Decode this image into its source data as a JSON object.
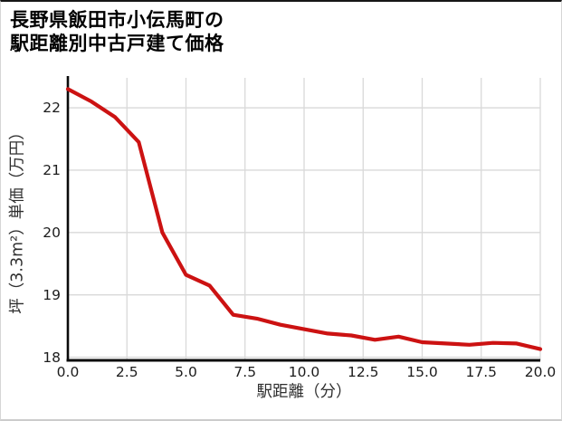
{
  "header": {
    "title_line1": "長野県飯田市小伝馬町の",
    "title_line2": "駅距離別中古戸建て価格"
  },
  "chart_data": {
    "type": "line",
    "title": "長野県飯田市小伝馬町の駅距離別中古戸建て価格",
    "xlabel": "駅距離（分）",
    "ylabel": "坪（3.3m²）単価（万円）",
    "x": [
      0,
      1,
      2,
      3,
      4,
      5,
      6,
      7,
      8,
      9,
      10,
      11,
      12,
      13,
      14,
      15,
      16,
      17,
      18,
      19,
      20
    ],
    "values": [
      22.3,
      22.1,
      21.85,
      21.45,
      20.0,
      19.32,
      19.15,
      18.68,
      18.62,
      18.52,
      18.45,
      18.38,
      18.35,
      18.28,
      18.33,
      18.24,
      18.22,
      18.2,
      18.23,
      18.22,
      18.13
    ],
    "xlim": [
      0,
      20
    ],
    "ylim": [
      17.95,
      22.48
    ],
    "xticks": {
      "values": [
        0,
        2.5,
        5,
        7.5,
        10,
        12.5,
        15,
        17.5,
        20
      ],
      "labels": [
        "0.0",
        "2.5",
        "5.0",
        "7.5",
        "10.0",
        "12.5",
        "15.0",
        "17.5",
        "20.0"
      ]
    },
    "yticks": {
      "values": [
        18,
        19,
        20,
        21,
        22
      ],
      "labels": [
        "18",
        "19",
        "20",
        "21",
        "22"
      ]
    },
    "grid": true,
    "legend": "none",
    "line_color": "#cc1212",
    "grid_color": "#d9d9d9",
    "spine_color": "#0a0a0a",
    "tick_color": "#1c1c1c"
  }
}
